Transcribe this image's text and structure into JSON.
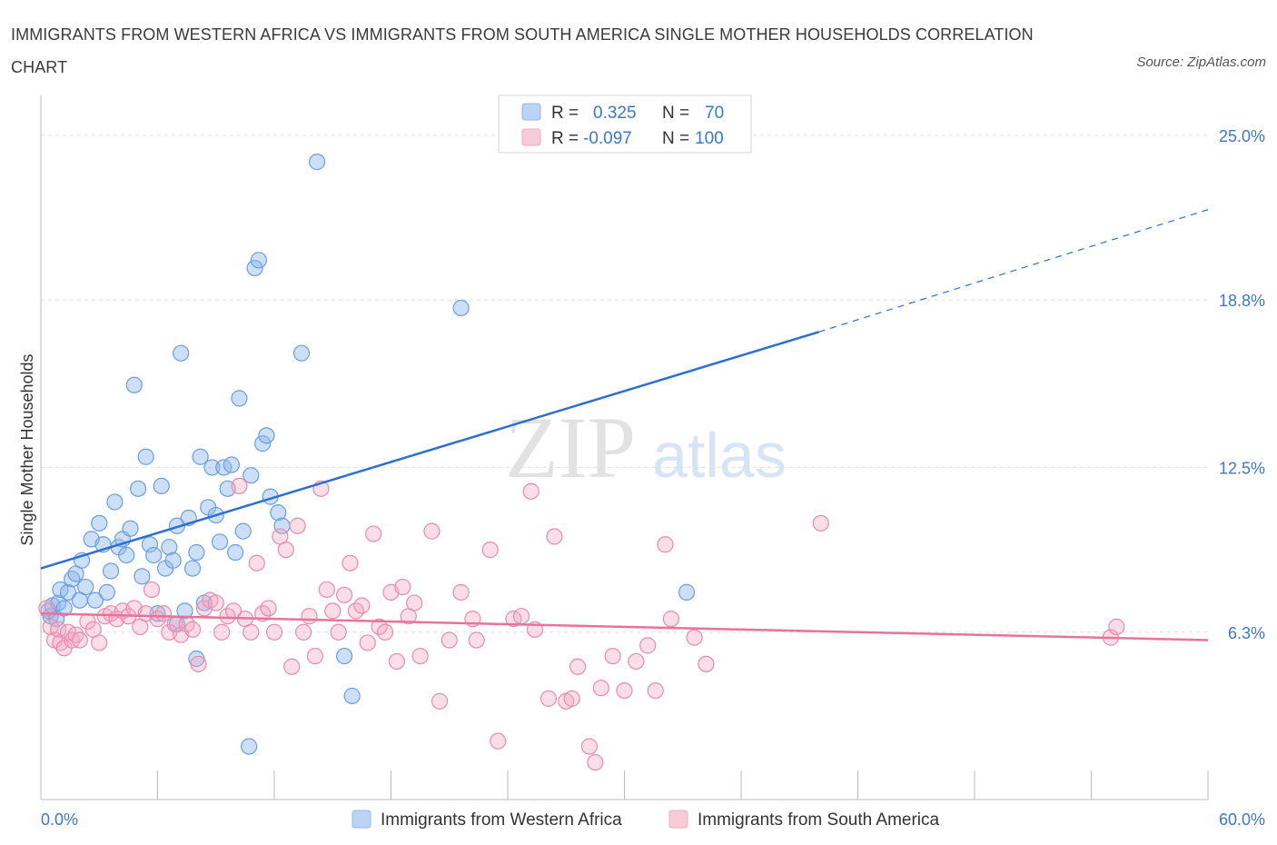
{
  "title": "IMMIGRANTS FROM WESTERN AFRICA VS IMMIGRANTS FROM SOUTH AMERICA SINGLE MOTHER HOUSEHOLDS CORRELATION CHART",
  "source": "Source: ZipAtlas.com",
  "watermark": {
    "zip": "ZIP",
    "atlas": "atlas"
  },
  "legend": {
    "rows": [
      {
        "r_label": "R =",
        "r_value": "0.325",
        "n_label": "N =",
        "n_value": "70"
      },
      {
        "r_label": "R =",
        "r_value": "-0.097",
        "n_label": "N =",
        "n_value": "100"
      }
    ]
  },
  "colors": {
    "blue": "#8fb8ec",
    "blue_line": "#2d6fd0",
    "pink": "#f1a9c1",
    "pink_line": "#e8739a",
    "tick": "#3b78c9",
    "grid": "#dddddd"
  },
  "chart_data": {
    "type": "scatter",
    "title": "IMMIGRANTS FROM WESTERN AFRICA VS IMMIGRANTS FROM SOUTH AMERICA SINGLE MOTHER HOUSEHOLDS CORRELATION CHART",
    "xlabel": "",
    "ylabel": "Single Mother Households",
    "xlim": [
      0,
      60
    ],
    "ylim": [
      0,
      26.5
    ],
    "x_tick_labels": [
      "0.0%",
      "60.0%"
    ],
    "y_ticks": [
      6.3,
      12.5,
      18.8,
      25.0
    ],
    "y_tick_labels": [
      "6.3%",
      "12.5%",
      "18.8%",
      "25.0%"
    ],
    "grid": "horizontal dashed",
    "legend_position": "top-center",
    "series": [
      {
        "name": "Immigrants from Western Africa",
        "color": "#8fb8ec",
        "trend": {
          "x0": 0,
          "y0": 8.7,
          "x1": 40,
          "y1": 17.6,
          "dashed_to_x": 60,
          "dashed_to_y": 22.2
        },
        "points": [
          [
            0.4,
            7.1
          ],
          [
            0.5,
            6.9
          ],
          [
            0.6,
            7.3
          ],
          [
            0.8,
            6.8
          ],
          [
            0.9,
            7.4
          ],
          [
            1.0,
            7.9
          ],
          [
            1.2,
            7.2
          ],
          [
            1.4,
            7.8
          ],
          [
            1.6,
            8.3
          ],
          [
            1.8,
            8.5
          ],
          [
            2.0,
            7.5
          ],
          [
            2.1,
            9.0
          ],
          [
            2.3,
            8.0
          ],
          [
            2.6,
            9.8
          ],
          [
            2.8,
            7.5
          ],
          [
            3.0,
            10.4
          ],
          [
            3.2,
            9.6
          ],
          [
            3.4,
            7.8
          ],
          [
            3.6,
            8.6
          ],
          [
            3.8,
            11.2
          ],
          [
            4.0,
            9.5
          ],
          [
            4.2,
            9.8
          ],
          [
            4.4,
            9.2
          ],
          [
            4.6,
            10.2
          ],
          [
            4.8,
            15.6
          ],
          [
            5.0,
            11.7
          ],
          [
            5.2,
            8.4
          ],
          [
            5.4,
            12.9
          ],
          [
            5.6,
            9.6
          ],
          [
            5.8,
            9.2
          ],
          [
            6.0,
            7.0
          ],
          [
            6.2,
            11.8
          ],
          [
            6.4,
            8.7
          ],
          [
            6.6,
            9.5
          ],
          [
            6.8,
            9.0
          ],
          [
            7.0,
            10.3
          ],
          [
            7.2,
            16.8
          ],
          [
            7.4,
            7.1
          ],
          [
            7.6,
            10.6
          ],
          [
            7.8,
            8.7
          ],
          [
            8.0,
            9.3
          ],
          [
            8.2,
            12.9
          ],
          [
            8.4,
            7.4
          ],
          [
            8.6,
            11.0
          ],
          [
            8.8,
            12.5
          ],
          [
            9.0,
            10.7
          ],
          [
            9.2,
            9.7
          ],
          [
            9.4,
            12.5
          ],
          [
            9.6,
            11.7
          ],
          [
            9.8,
            12.6
          ],
          [
            10.0,
            9.3
          ],
          [
            10.2,
            15.1
          ],
          [
            10.4,
            10.1
          ],
          [
            10.8,
            12.2
          ],
          [
            11.0,
            20.0
          ],
          [
            11.2,
            20.3
          ],
          [
            11.4,
            13.4
          ],
          [
            11.6,
            13.7
          ],
          [
            11.8,
            11.4
          ],
          [
            12.2,
            10.8
          ],
          [
            12.4,
            10.3
          ],
          [
            13.4,
            16.8
          ],
          [
            14.2,
            24.0
          ],
          [
            15.6,
            5.4
          ],
          [
            16.0,
            3.9
          ],
          [
            21.6,
            18.5
          ],
          [
            33.2,
            7.8
          ],
          [
            8.0,
            5.3
          ],
          [
            10.7,
            2.0
          ],
          [
            7.0,
            6.6
          ]
        ]
      },
      {
        "name": "Immigrants from South America",
        "color": "#f1a9c1",
        "trend": {
          "x0": 0,
          "y0": 7.0,
          "x1": 60,
          "y1": 6.0
        },
        "points": [
          [
            0.3,
            7.2
          ],
          [
            0.5,
            6.5
          ],
          [
            0.7,
            6.0
          ],
          [
            0.9,
            6.4
          ],
          [
            1.0,
            5.9
          ],
          [
            1.2,
            5.7
          ],
          [
            1.4,
            6.3
          ],
          [
            1.6,
            6.0
          ],
          [
            1.8,
            6.2
          ],
          [
            2.0,
            6.0
          ],
          [
            2.4,
            6.7
          ],
          [
            2.7,
            6.4
          ],
          [
            3.0,
            5.9
          ],
          [
            3.3,
            6.9
          ],
          [
            3.6,
            7.0
          ],
          [
            3.9,
            6.8
          ],
          [
            4.2,
            7.1
          ],
          [
            4.5,
            6.9
          ],
          [
            4.8,
            7.2
          ],
          [
            5.1,
            6.5
          ],
          [
            5.4,
            7.0
          ],
          [
            5.7,
            7.9
          ],
          [
            6.0,
            6.8
          ],
          [
            6.3,
            7.0
          ],
          [
            6.6,
            6.3
          ],
          [
            6.9,
            6.6
          ],
          [
            7.2,
            6.2
          ],
          [
            7.5,
            6.6
          ],
          [
            7.8,
            6.4
          ],
          [
            8.1,
            5.1
          ],
          [
            8.4,
            7.2
          ],
          [
            8.7,
            7.5
          ],
          [
            9.0,
            7.4
          ],
          [
            9.3,
            6.3
          ],
          [
            9.6,
            6.9
          ],
          [
            9.9,
            7.1
          ],
          [
            10.2,
            11.8
          ],
          [
            10.5,
            6.8
          ],
          [
            10.8,
            6.3
          ],
          [
            11.1,
            8.9
          ],
          [
            11.4,
            7.0
          ],
          [
            11.7,
            7.2
          ],
          [
            12.0,
            6.3
          ],
          [
            12.3,
            9.9
          ],
          [
            12.6,
            9.4
          ],
          [
            12.9,
            5.0
          ],
          [
            13.2,
            10.3
          ],
          [
            13.5,
            6.3
          ],
          [
            13.8,
            6.9
          ],
          [
            14.1,
            5.4
          ],
          [
            14.4,
            11.7
          ],
          [
            14.7,
            7.9
          ],
          [
            15.0,
            7.1
          ],
          [
            15.3,
            6.3
          ],
          [
            15.6,
            7.7
          ],
          [
            15.9,
            8.9
          ],
          [
            16.2,
            7.1
          ],
          [
            16.5,
            7.3
          ],
          [
            16.8,
            5.9
          ],
          [
            17.1,
            10.0
          ],
          [
            17.4,
            6.5
          ],
          [
            17.7,
            6.3
          ],
          [
            18.0,
            7.8
          ],
          [
            18.3,
            5.2
          ],
          [
            18.6,
            8.0
          ],
          [
            18.9,
            6.9
          ],
          [
            19.2,
            7.4
          ],
          [
            19.5,
            5.4
          ],
          [
            20.1,
            10.1
          ],
          [
            21.0,
            6.0
          ],
          [
            21.6,
            7.8
          ],
          [
            22.2,
            6.8
          ],
          [
            23.1,
            9.4
          ],
          [
            24.3,
            6.8
          ],
          [
            25.2,
            11.6
          ],
          [
            26.1,
            3.8
          ],
          [
            26.4,
            9.9
          ],
          [
            27.0,
            3.7
          ],
          [
            27.6,
            5.0
          ],
          [
            28.2,
            2.0
          ],
          [
            28.8,
            4.2
          ],
          [
            29.4,
            5.4
          ],
          [
            30.0,
            4.1
          ],
          [
            31.2,
            5.8
          ],
          [
            32.1,
            9.6
          ],
          [
            32.4,
            6.8
          ],
          [
            33.6,
            6.1
          ],
          [
            34.2,
            5.1
          ],
          [
            40.1,
            10.4
          ],
          [
            55.0,
            6.1
          ],
          [
            55.3,
            6.5
          ],
          [
            20.5,
            3.7
          ],
          [
            23.5,
            2.2
          ],
          [
            28.5,
            1.4
          ],
          [
            22.4,
            6.0
          ],
          [
            25.4,
            6.4
          ],
          [
            24.7,
            6.9
          ],
          [
            27.3,
            3.8
          ],
          [
            31.6,
            4.1
          ],
          [
            30.6,
            5.2
          ]
        ]
      }
    ]
  }
}
